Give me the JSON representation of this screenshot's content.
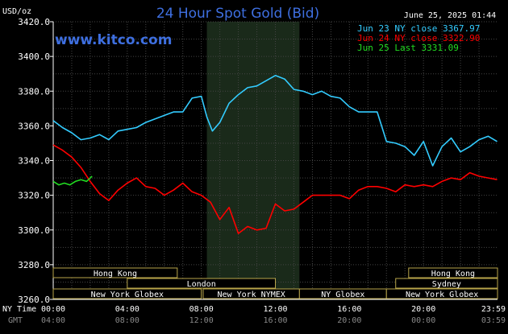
{
  "header": {
    "title": "24 Hour Spot Gold (Bid)",
    "unit": "USD/oz",
    "site": "www.kitco.com",
    "timestamp": "June 25, 2025 01:44"
  },
  "legend": [
    {
      "label": "Jun 23 NY close 3367.97",
      "color": "#33ccff"
    },
    {
      "label": "Jun 24 NY close 3322.90",
      "color": "#ff0000"
    },
    {
      "label": "Jun 25 Last 3331.09",
      "color": "#22dd22"
    }
  ],
  "x_axis": {
    "ny_label": "NY Time",
    "gmt_label": "GMT",
    "ny_ticks": [
      "00:00",
      "04:00",
      "08:00",
      "12:00",
      "16:00",
      "20:00",
      "23:59"
    ],
    "gmt_ticks": [
      "04:00",
      "08:00",
      "12:00",
      "16:00",
      "20:00",
      "00:00",
      "03:59"
    ]
  },
  "sessions": [
    {
      "label": "Hong Kong"
    },
    {
      "label": "London"
    },
    {
      "label": "New York Globex"
    },
    {
      "label": "New York NYMEX"
    },
    {
      "label": "NY Globex"
    },
    {
      "label": "Hong Kong"
    },
    {
      "label": "Sydney"
    },
    {
      "label": "New York Globex"
    }
  ],
  "chart_data": {
    "type": "line",
    "title": "24 Hour Spot Gold (Bid)",
    "ylabel": "USD/oz",
    "ylim": [
      3260,
      3420
    ],
    "yticks": [
      "3420.0",
      "3400.0",
      "3380.0",
      "3360.0",
      "3340.0",
      "3320.0",
      "3300.0",
      "3280.0",
      "3260.0"
    ],
    "x_unit": "hours (NY time)",
    "xlim": [
      0,
      24
    ],
    "shaded_hours": [
      8.3,
      13.3
    ],
    "series": [
      {
        "name": "Jun 23 NY close 3367.97",
        "color": "#33ccff",
        "x": [
          0,
          0.5,
          1,
          1.5,
          2,
          2.5,
          3,
          3.5,
          4,
          4.5,
          5,
          5.5,
          6,
          6.5,
          7,
          7.5,
          8,
          8.3,
          8.6,
          9,
          9.5,
          10,
          10.5,
          11,
          11.5,
          12,
          12.5,
          13,
          13.5,
          14,
          14.5,
          15,
          15.5,
          16,
          16.5,
          17,
          17.5,
          18,
          18.5,
          19,
          19.5,
          20,
          20.5,
          21,
          21.5,
          22,
          22.5,
          23,
          23.5,
          23.98
        ],
        "y": [
          3363,
          3359,
          3356,
          3352,
          3353,
          3355,
          3352,
          3357,
          3358,
          3359,
          3362,
          3364,
          3366,
          3368,
          3368,
          3376,
          3377,
          3365,
          3357,
          3362,
          3373,
          3378,
          3382,
          3383,
          3386,
          3389,
          3387,
          3381,
          3380,
          3378,
          3380,
          3377,
          3376,
          3371,
          3368,
          3368,
          3368,
          3351,
          3350,
          3348,
          3343,
          3351,
          3337,
          3348,
          3353,
          3345,
          3348,
          3352,
          3354,
          3351
        ]
      },
      {
        "name": "Jun 24 NY close 3322.90",
        "color": "#ff0000",
        "x": [
          0,
          0.5,
          1,
          1.5,
          2,
          2.5,
          3,
          3.5,
          4,
          4.5,
          5,
          5.5,
          6,
          6.5,
          7,
          7.5,
          8,
          8.5,
          9,
          9.5,
          10,
          10.5,
          11,
          11.5,
          12,
          12.5,
          13,
          13.5,
          14,
          14.5,
          15,
          15.5,
          16,
          16.5,
          17,
          17.5,
          18,
          18.5,
          19,
          19.5,
          20,
          20.5,
          21,
          21.5,
          22,
          22.5,
          23,
          23.5,
          23.98
        ],
        "y": [
          3349,
          3346,
          3342,
          3336,
          3328,
          3321,
          3317,
          3323,
          3327,
          3330,
          3325,
          3324,
          3320,
          3323,
          3327,
          3322,
          3320,
          3316,
          3306,
          3313,
          3298,
          3302,
          3300,
          3301,
          3315,
          3311,
          3312,
          3316,
          3320,
          3320,
          3320,
          3320,
          3318,
          3323,
          3325,
          3325,
          3324,
          3322,
          3326,
          3325,
          3326,
          3325,
          3328,
          3330,
          3329,
          3333,
          3331,
          3330,
          3329
        ]
      },
      {
        "name": "Jun 25 Last 3331.09",
        "color": "#22dd22",
        "x": [
          0,
          0.3,
          0.6,
          0.9,
          1.2,
          1.5,
          1.8,
          2.1
        ],
        "y": [
          3328,
          3326,
          3327,
          3326,
          3328,
          3329,
          3328,
          3331
        ]
      }
    ]
  }
}
